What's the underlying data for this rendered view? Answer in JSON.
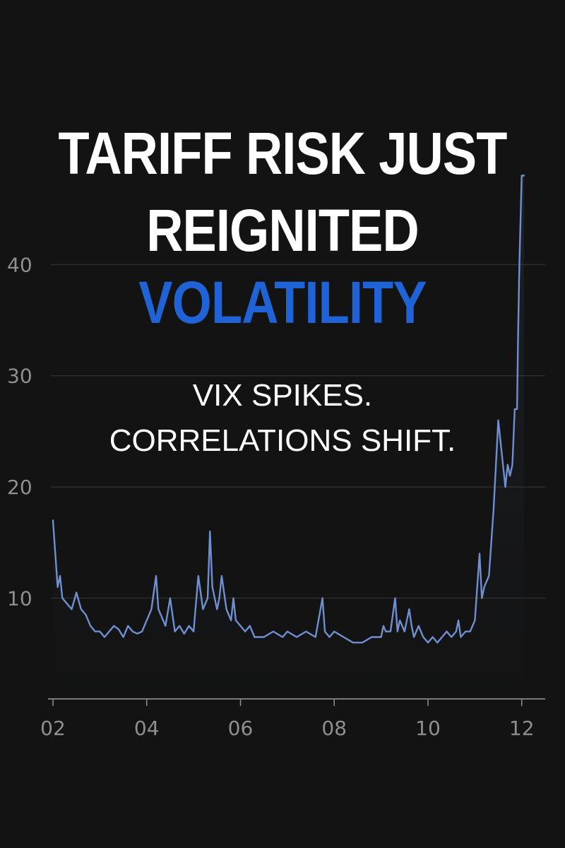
{
  "headline": {
    "line1": "TARIFF RISK JUST",
    "line2": "REIGNITED",
    "line3": "VOLATILITY"
  },
  "subheadline": {
    "line1": "VIX SPIKES.",
    "line2": "CORRELATIONS SHIFT."
  },
  "colors": {
    "background": "#131313",
    "headline": "#ffffff",
    "accent": "#1f63d6",
    "line": "#6f8fd0",
    "axis": "#8f8f8f",
    "grid": "#2d2d2d"
  },
  "chart_data": {
    "type": "line",
    "xlim": [
      2002,
      2012.2
    ],
    "ylim": [
      1,
      46
    ],
    "grid": "horizontal",
    "x_tick_labels": [
      {
        "value": 2002,
        "label": "02"
      },
      {
        "value": 2004,
        "label": "04"
      },
      {
        "value": 2006,
        "label": "06"
      },
      {
        "value": 2008,
        "label": "08"
      },
      {
        "value": 2010,
        "label": "10"
      },
      {
        "value": 2012,
        "label": "12"
      }
    ],
    "y_tick_labels": [
      {
        "value": 10,
        "label": "10"
      },
      {
        "value": 20,
        "label": "20"
      },
      {
        "value": 30,
        "label": "30"
      },
      {
        "value": 40,
        "label": "40"
      }
    ],
    "series": [
      {
        "x": [
          2002.0,
          2002.05,
          2002.1,
          2002.15,
          2002.2,
          2002.3,
          2002.4,
          2002.5,
          2002.6,
          2002.7,
          2002.8,
          2002.9,
          2003.0,
          2003.1,
          2003.2,
          2003.3,
          2003.4,
          2003.5,
          2003.6,
          2003.7,
          2003.8,
          2003.9,
          2004.0,
          2004.1,
          2004.2,
          2004.25,
          2004.3,
          2004.4,
          2004.5,
          2004.6,
          2004.7,
          2004.8,
          2004.9,
          2005.0,
          2005.1,
          2005.2,
          2005.3,
          2005.35,
          2005.4,
          2005.5,
          2005.55,
          2005.6,
          2005.7,
          2005.8,
          2005.85,
          2005.9,
          2006.0,
          2006.1,
          2006.2,
          2006.3,
          2006.5,
          2006.7,
          2006.9,
          2007.0,
          2007.2,
          2007.4,
          2007.6,
          2007.75,
          2007.8,
          2007.9,
          2008.0,
          2008.2,
          2008.4,
          2008.6,
          2008.8,
          2009.0,
          2009.05,
          2009.1,
          2009.2,
          2009.3,
          2009.35,
          2009.4,
          2009.5,
          2009.6,
          2009.65,
          2009.7,
          2009.8,
          2009.9,
          2010.0,
          2010.1,
          2010.2,
          2010.3,
          2010.4,
          2010.5,
          2010.6,
          2010.65,
          2010.7,
          2010.8,
          2010.9,
          2011.0,
          2011.1,
          2011.15,
          2011.2,
          2011.3,
          2011.4,
          2011.5,
          2011.6,
          2011.65,
          2011.7,
          2011.75,
          2011.8,
          2011.85,
          2011.9,
          2011.92,
          2011.95,
          2012.0,
          2012.05
        ],
        "y": [
          17,
          14,
          11,
          12,
          10,
          9.5,
          9,
          10.5,
          9,
          8.5,
          7.5,
          7,
          7,
          6.5,
          7,
          7.5,
          7.2,
          6.5,
          7.5,
          7,
          6.8,
          7,
          8,
          9,
          12,
          9,
          8.5,
          7.5,
          10,
          7,
          7.5,
          6.8,
          7.5,
          7,
          12,
          9,
          10,
          16,
          11,
          9,
          10,
          12,
          9,
          8,
          10,
          8,
          7.5,
          7,
          7.5,
          6.5,
          6.5,
          7,
          6.5,
          7,
          6.5,
          7,
          6.5,
          10,
          7,
          6.5,
          7,
          6.5,
          6,
          6,
          6.5,
          6.5,
          7.5,
          7,
          7,
          10,
          7,
          8,
          7,
          9,
          7.5,
          6.5,
          7.5,
          6.5,
          6,
          6.5,
          6,
          6.5,
          7,
          6.5,
          7,
          8,
          6.5,
          7,
          7,
          8,
          14,
          10,
          11,
          12,
          18,
          26,
          22,
          20,
          22,
          21,
          22,
          27,
          27,
          33,
          40,
          48,
          48
        ]
      }
    ]
  }
}
